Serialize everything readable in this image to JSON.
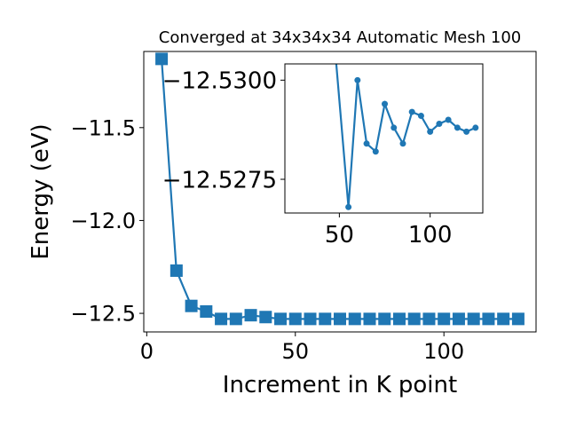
{
  "colors": {
    "series": "#1f77b4",
    "axes": "#000000",
    "background": "#ffffff"
  },
  "chart_data": [
    {
      "type": "line",
      "title": "Converged at 34x34x34 Automatic Mesh 100",
      "xlabel": "Increment in K point",
      "ylabel": "Energy (eV)",
      "xlim": [
        -1,
        131
      ],
      "ylim": [
        -12.6,
        -11.09
      ],
      "xticks": [
        0,
        50,
        100
      ],
      "xtick_labels": [
        "0",
        "50",
        "100"
      ],
      "yticks": [
        -12.5,
        -12.0,
        -11.5
      ],
      "ytick_labels": [
        "−12.5",
        "−12.0",
        "−11.5"
      ],
      "marker": "square",
      "grid": false,
      "x": [
        5,
        10,
        15,
        20,
        25,
        30,
        35,
        40,
        45,
        50,
        55,
        60,
        65,
        70,
        75,
        80,
        85,
        90,
        95,
        100,
        105,
        110,
        115,
        120,
        125
      ],
      "y": [
        -11.13,
        -12.27,
        -12.46,
        -12.49,
        -12.53,
        -12.53,
        -12.51,
        -12.52,
        -12.53,
        -12.53,
        -12.53,
        -12.53,
        -12.53,
        -12.53,
        -12.53,
        -12.53,
        -12.53,
        -12.53,
        -12.53,
        -12.53,
        -12.53,
        -12.53,
        -12.53,
        -12.53,
        -12.53
      ]
    },
    {
      "type": "line",
      "title": "",
      "inset": true,
      "xlim": [
        20,
        129
      ],
      "ylim": [
        -12.52665,
        -12.53041
      ],
      "xticks": [
        50,
        100
      ],
      "xtick_labels": [
        "50",
        "100"
      ],
      "yticks": [
        -12.5275,
        -12.53
      ],
      "ytick_labels": [
        "−12.5275",
        "−12.5300"
      ],
      "marker": "circle",
      "grid": false,
      "x": [
        45,
        55,
        60,
        65,
        70,
        75,
        80,
        85,
        90,
        95,
        100,
        105,
        110,
        115,
        120,
        125
      ],
      "y": [
        -12.5322,
        -12.5268,
        -12.53,
        -12.5284,
        -12.5282,
        -12.5294,
        -12.5288,
        -12.5284,
        -12.5292,
        -12.5291,
        -12.5287,
        -12.5289,
        -12.529,
        -12.5288,
        -12.5287,
        -12.5288
      ]
    }
  ]
}
